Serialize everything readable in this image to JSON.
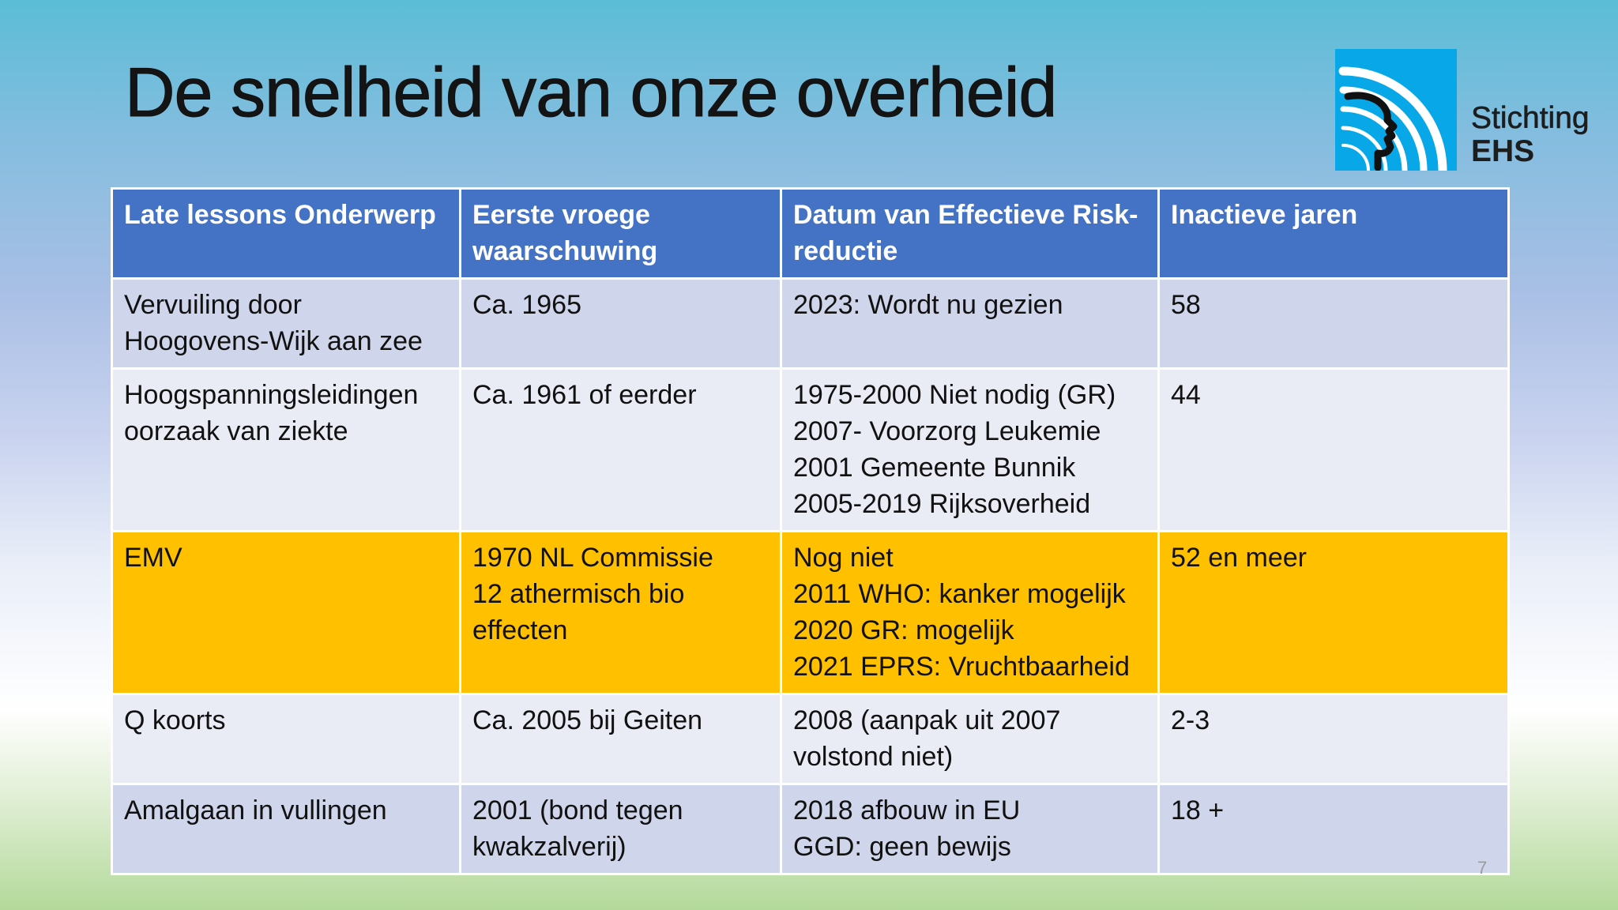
{
  "slide": {
    "title": "De snelheid van onze overheid",
    "page_number": "7"
  },
  "logo": {
    "line1": "Stichting",
    "line2": "EHS",
    "colors": {
      "mark": "#08a8e8",
      "arcs": "#ffffff",
      "profile": "#111111"
    }
  },
  "table": {
    "headers": [
      [
        "Late lessons Onderwerp"
      ],
      [
        "Eerste vroege",
        "waarschuwing"
      ],
      [
        "Datum van Effectieve Risk-",
        "reductie"
      ],
      [
        "Inactieve jaren"
      ]
    ],
    "rows": [
      [
        [
          "Vervuiling door",
          "Hoogovens-Wijk aan zee"
        ],
        [
          "Ca. 1965"
        ],
        [
          "2023: Wordt nu gezien"
        ],
        [
          "58"
        ]
      ],
      [
        [
          "Hoogspanningsleidingen",
          "oorzaak van ziekte"
        ],
        [
          "Ca. 1961  of eerder"
        ],
        [
          "1975-2000 Niet nodig (GR)",
          "2007- Voorzorg Leukemie",
          "2001 Gemeente Bunnik",
          "2005-2019 Rijksoverheid"
        ],
        [
          "44"
        ]
      ],
      [
        [
          "EMV"
        ],
        [
          "1970  NL Commissie",
          "12 athermisch bio",
          "effecten"
        ],
        [
          "Nog niet",
          "2011 WHO: kanker mogelijk",
          "2020 GR: mogelijk",
          "2021 EPRS: Vruchtbaarheid"
        ],
        [
          "52 en meer"
        ]
      ],
      [
        [
          "Q koorts"
        ],
        [
          "Ca. 2005 bij Geiten"
        ],
        [
          "2008 (aanpak uit 2007",
          "volstond niet)"
        ],
        [
          "2-3"
        ]
      ],
      [
        [
          "Amalgaan in vullingen"
        ],
        [
          "2001 (bond tegen",
          "kwakzalverij)"
        ],
        [
          "2018 afbouw in EU",
          "GGD: geen bewijs"
        ],
        [
          "18 +"
        ]
      ]
    ],
    "colors": {
      "header": "#4472c4",
      "row_dark": "#cfd5ea",
      "row_light": "#e9ebf5",
      "highlight": "#ffc000"
    }
  }
}
